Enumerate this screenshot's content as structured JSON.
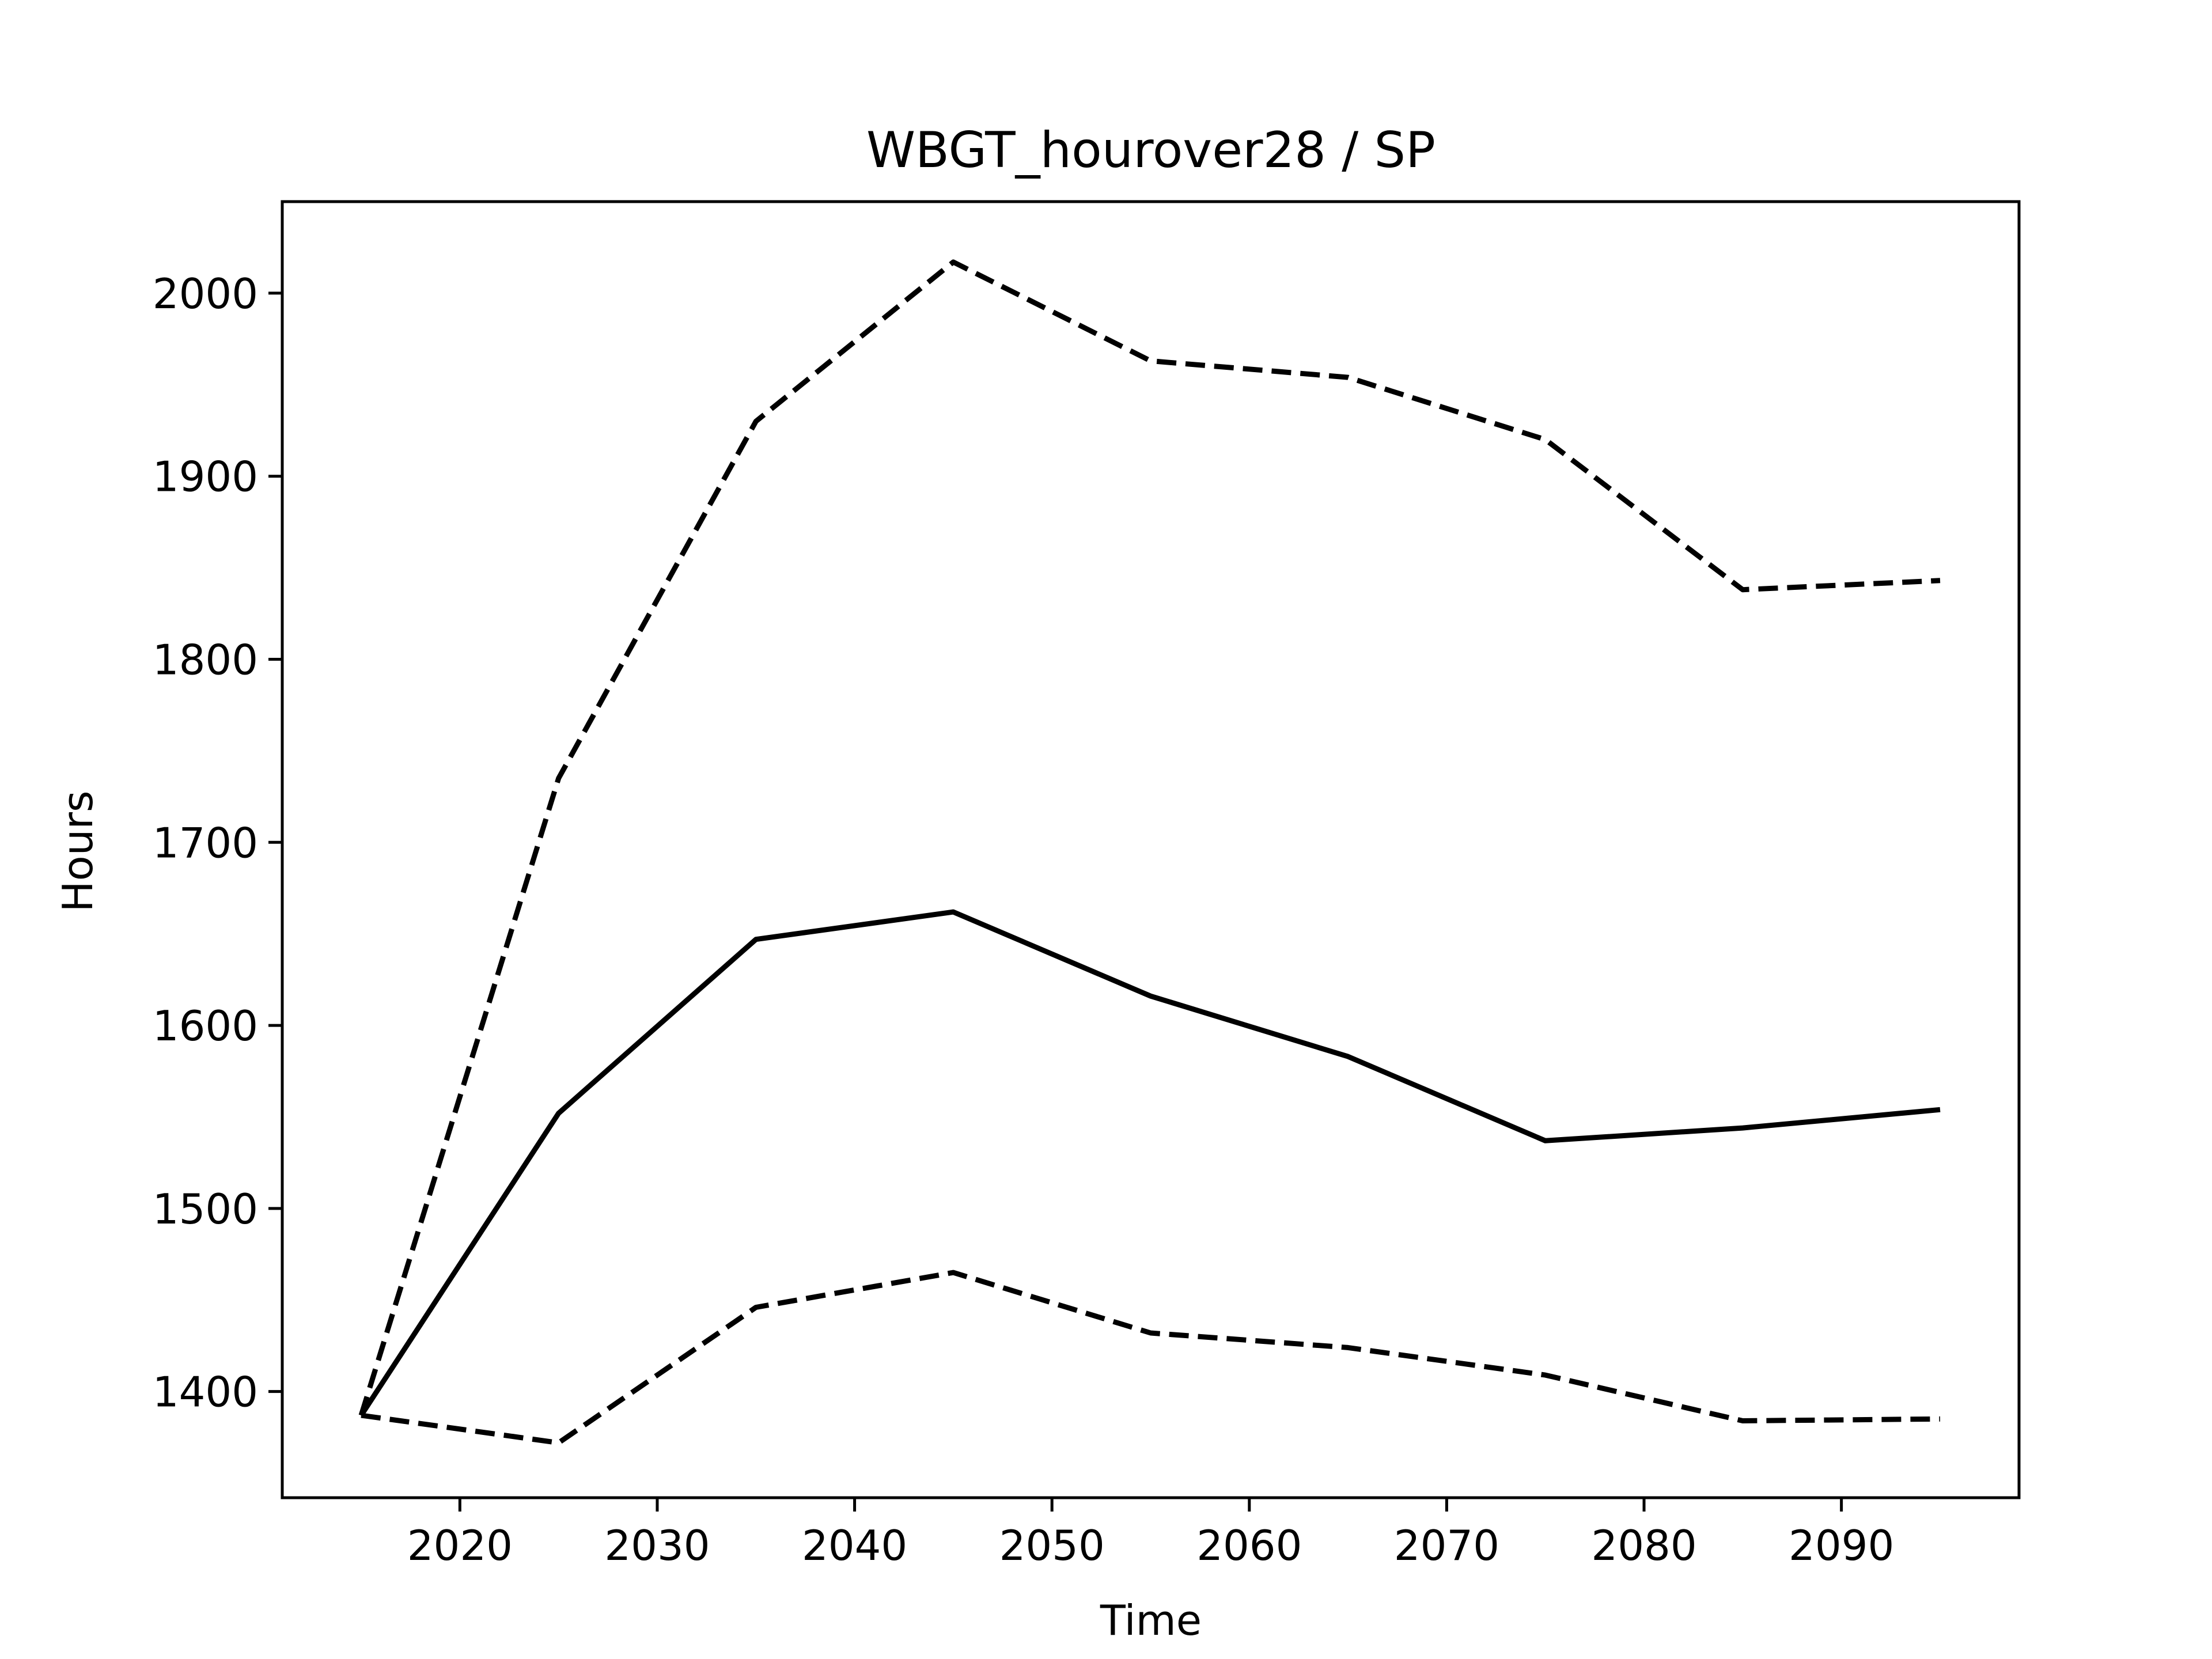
{
  "chart_data": {
    "type": "line",
    "title": "WBGT_hourover28 / SP",
    "xlabel": "Time",
    "ylabel": "Hours",
    "xlim": [
      2011,
      2099
    ],
    "ylim": [
      1342,
      2050
    ],
    "xticks": [
      2020,
      2030,
      2040,
      2050,
      2060,
      2070,
      2080,
      2090
    ],
    "yticks": [
      1400,
      1500,
      1600,
      1700,
      1800,
      1900,
      2000
    ],
    "x": [
      2015,
      2025,
      2035,
      2045,
      2055,
      2065,
      2075,
      2085,
      2095
    ],
    "series": [
      {
        "style": "dashed",
        "color": "#000000",
        "values": [
          1387,
          1735,
          1930,
          2017,
          1963,
          1954,
          1920,
          1838,
          1843
        ]
      },
      {
        "style": "solid",
        "color": "#000000",
        "values": [
          1387,
          1552,
          1647,
          1662,
          1616,
          1583,
          1537,
          1544,
          1554
        ]
      },
      {
        "style": "dashed",
        "color": "#000000",
        "values": [
          1387,
          1372,
          1446,
          1465,
          1432,
          1424,
          1409,
          1384,
          1385
        ]
      }
    ],
    "grid": false,
    "legend": "none"
  }
}
